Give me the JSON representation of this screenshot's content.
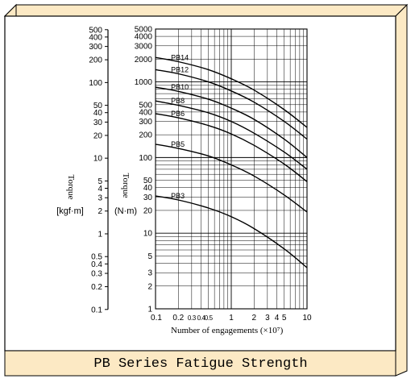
{
  "caption": "PB Series Fatigue Strength",
  "chart_data": {
    "type": "line",
    "title": "PB Series Fatigue Strength",
    "xlabel": "Number of engagements (×10⁷)",
    "xscale": "log",
    "xlim": [
      0.1,
      10
    ],
    "x_ticks": [
      {
        "v": 0.1,
        "t": "0.1"
      },
      {
        "v": 0.2,
        "t": "0.2"
      },
      {
        "v": 0.3,
        "t": "0.3"
      },
      {
        "v": 0.4,
        "t": "0.4"
      },
      {
        "v": 0.5,
        "t": "0.5"
      },
      {
        "v": 1,
        "t": "1"
      },
      {
        "v": 2,
        "t": "2"
      },
      {
        "v": 3,
        "t": "3"
      },
      {
        "v": 4,
        "t": "4"
      },
      {
        "v": 5,
        "t": "5"
      },
      {
        "v": 10,
        "t": "10"
      }
    ],
    "yscale": "log",
    "ylim": [
      1,
      5000
    ],
    "ylabel": "Torque",
    "yunit": "(N·m)",
    "y_ticks": [
      1,
      2,
      3,
      5,
      10,
      20,
      30,
      40,
      50,
      100,
      200,
      300,
      400,
      500,
      1000,
      2000,
      3000,
      4000,
      5000
    ],
    "secondary_axis": {
      "label": "Torque",
      "unit": "[kgf·m]",
      "ticks": [
        {
          "v": 0.1,
          "t": "0.1"
        },
        {
          "v": 0.2,
          "t": "0.2"
        },
        {
          "v": 0.3,
          "t": "0.3"
        },
        {
          "v": 0.4,
          "t": "0.4"
        },
        {
          "v": 0.5,
          "t": "0.5"
        },
        {
          "v": 1,
          "t": "1"
        },
        {
          "v": 2,
          "t": "2"
        },
        {
          "v": 3,
          "t": "3"
        },
        {
          "v": 4,
          "t": "4"
        },
        {
          "v": 5,
          "t": "5"
        },
        {
          "v": 10,
          "t": "10"
        },
        {
          "v": 20,
          "t": "20"
        },
        {
          "v": 30,
          "t": "30"
        },
        {
          "v": 40,
          "t": "40"
        },
        {
          "v": 50,
          "t": "50"
        },
        {
          "v": 100,
          "t": "100"
        },
        {
          "v": 200,
          "t": "200"
        },
        {
          "v": 300,
          "t": "300"
        },
        {
          "v": 400,
          "t": "400"
        },
        {
          "v": 500,
          "t": "500"
        }
      ]
    },
    "x": [
      0.1,
      0.2,
      0.5,
      1,
      2,
      5,
      10
    ],
    "series": [
      {
        "name": "PB14",
        "values": [
          2100,
          1850,
          1450,
          1100,
          780,
          430,
          250
        ]
      },
      {
        "name": "PB12",
        "values": [
          1450,
          1280,
          1000,
          760,
          540,
          300,
          175
        ]
      },
      {
        "name": "PB10",
        "values": [
          850,
          750,
          590,
          450,
          320,
          175,
          100
        ]
      },
      {
        "name": "PB8",
        "values": [
          560,
          490,
          390,
          300,
          210,
          118,
          70
        ]
      },
      {
        "name": "PB6",
        "values": [
          380,
          335,
          265,
          205,
          145,
          82,
          48
        ]
      },
      {
        "name": "PB5",
        "values": [
          150,
          132,
          105,
          80,
          57,
          32,
          19
        ]
      },
      {
        "name": "PB3",
        "values": [
          31,
          27.5,
          21.5,
          16.5,
          11.5,
          6.2,
          3.5
        ]
      }
    ],
    "grid": true
  }
}
